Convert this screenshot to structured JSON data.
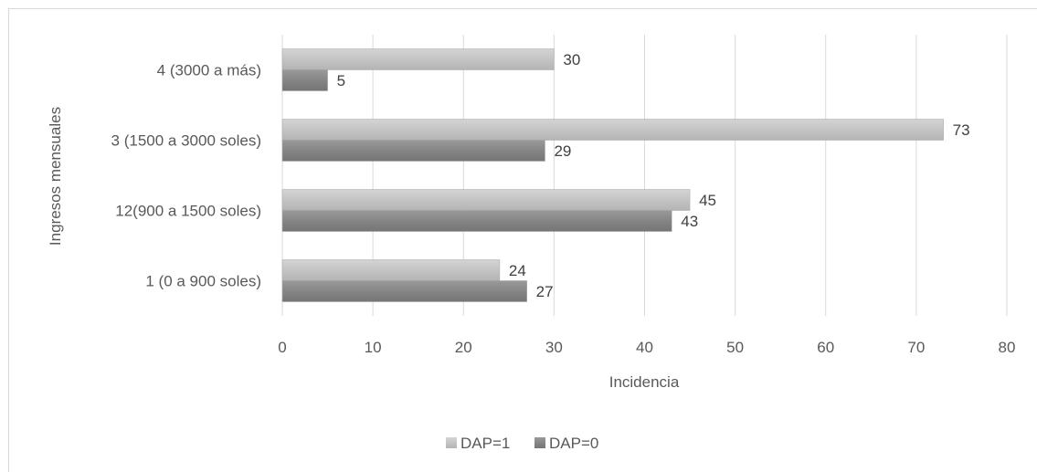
{
  "chart_data": {
    "type": "bar",
    "orientation": "horizontal",
    "categories": [
      "1 (0 a 900 soles)",
      "12(900 a 1500 soles)",
      "3 (1500 a 3000 soles)",
      "4 (3000 a más)"
    ],
    "series": [
      {
        "name": "DAP=1",
        "values": [
          24,
          45,
          73,
          30
        ],
        "color": "#bfbfbf"
      },
      {
        "name": "DAP=0",
        "values": [
          27,
          43,
          29,
          5
        ],
        "color": "#7f7f7f"
      }
    ],
    "xlabel": "Incidencia",
    "ylabel": "Ingresos mensuales",
    "xlim": [
      0,
      80
    ],
    "xticks": [
      0,
      10,
      20,
      30,
      40,
      50,
      60,
      70,
      80
    ],
    "grid": true,
    "legend_position": "bottom"
  }
}
